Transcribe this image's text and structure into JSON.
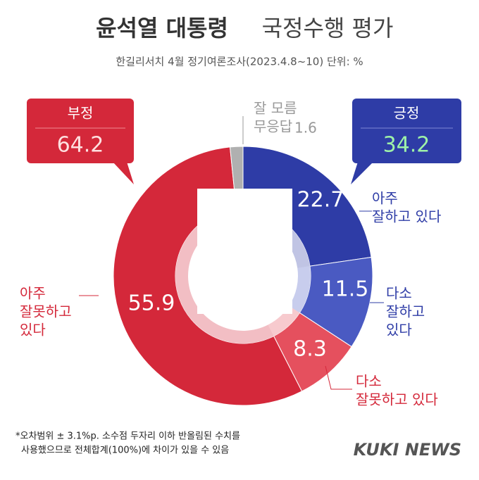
{
  "chart_data": {
    "type": "donut",
    "title": "윤석열 대통령",
    "title_rest": "국정수행 평가",
    "subtitle": "한길리서치 4월 정기여론조사(2023.4.8~10) 단위: %",
    "categories": [
      [
        "아주",
        "잘하고 있다"
      ],
      [
        "다소",
        "잘하고",
        "있다"
      ],
      [
        "다소",
        "잘못하고 있다"
      ],
      [
        "아주",
        "잘못하고",
        "있다"
      ],
      [
        "잘 모름",
        "무응답"
      ]
    ],
    "values": [
      22.7,
      11.5,
      8.3,
      55.9,
      1.6
    ],
    "colors": [
      "#2e3ca6",
      "#4a5ac2",
      "#e5505e",
      "#d4283a",
      "#b0b0b0"
    ],
    "negative": {
      "label": "부정",
      "value": 64.2
    },
    "positive": {
      "label": "긍정",
      "value": 34.2
    },
    "footnote": [
      "*오차범위 ± 3.1%p. 소수점 두자리 이하 반올림된 수치를",
      "사용했으므로 전체합계(100%)에 차이가 있을 수 있음"
    ],
    "source": "KUKI NEWS"
  }
}
